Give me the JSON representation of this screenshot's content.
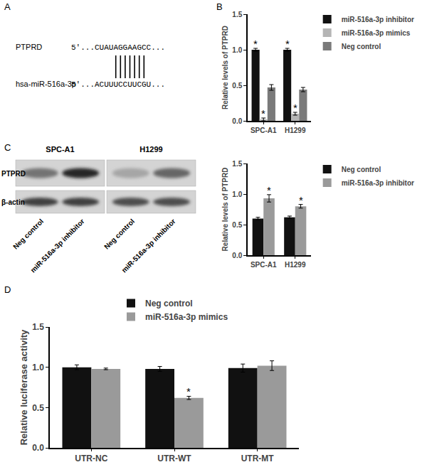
{
  "panels": [
    "A",
    "B",
    "C",
    "D"
  ],
  "alignment": {
    "rows": [
      {
        "label": "PTPRD",
        "sequence": "5'...CUAUAGGAAGCC..."
      },
      {
        "label": "hsa-miR-516a-3p",
        "sequence": "5'...ACUUUCCUUCGU..."
      }
    ]
  },
  "blot": {
    "cell_lines": [
      "SPC-A1",
      "H1299"
    ],
    "proteins": [
      "PTPRD",
      "β-actin"
    ],
    "lanes": [
      "Neg control",
      "miR-516a-3p inhibitor"
    ]
  },
  "chart_data": [
    {
      "type": "bar",
      "y_label": "Relative levels of PTPRD",
      "categories": [
        "SPC-A1",
        "H1299"
      ],
      "series": [
        {
          "name": "miR-516a-3p inhibitor",
          "color": "#111111",
          "values": [
            1.0,
            1.0
          ],
          "errors": [
            0.02,
            0.02
          ],
          "annotations": [
            "*",
            "*"
          ]
        },
        {
          "name": "miR-516a-3p mimics",
          "color": "#b5b5b5",
          "values": [
            0.02,
            0.1
          ],
          "errors": [
            0.02,
            0.02
          ],
          "annotations": [
            "*",
            "*"
          ]
        },
        {
          "name": "Neg control",
          "color": "#7a7a7a",
          "values": [
            0.47,
            0.44
          ],
          "errors": [
            0.04,
            0.03
          ]
        }
      ],
      "ylim": [
        0,
        1.5
      ],
      "yticks": [
        {
          "value": 0,
          "label": "0.0"
        },
        0.5,
        {
          "value": 1,
          "label": "1.0"
        },
        1.5
      ],
      "grid": false,
      "legend": "right"
    },
    {
      "type": "bar",
      "y_label": "Relative levels of PTPRD",
      "categories": [
        "SPC-A1",
        "H1299"
      ],
      "series": [
        {
          "name": "Neg control",
          "color": "#111111",
          "values": [
            0.6,
            0.62
          ],
          "errors": [
            0.02,
            0.02
          ]
        },
        {
          "name": "miR-516a-3p inhibitor",
          "color": "#9a9a9a",
          "values": [
            0.93,
            0.8
          ],
          "errors": [
            0.06,
            0.03
          ],
          "annotations": [
            "*",
            "*"
          ]
        }
      ],
      "ylim": [
        0,
        1.5
      ],
      "yticks": [
        {
          "value": 0,
          "label": "0.0"
        },
        0.5,
        {
          "value": 1,
          "label": "1.0"
        },
        1.5
      ],
      "grid": false,
      "legend": "right"
    },
    {
      "type": "bar",
      "y_label": "Relative luciferase activity",
      "categories": [
        "UTR-NC",
        "UTR-WT",
        "UTR-MT"
      ],
      "series": [
        {
          "name": "Neg control",
          "color": "#111111",
          "values": [
            1.0,
            0.98,
            0.99
          ],
          "errors": [
            0.03,
            0.03,
            0.05
          ]
        },
        {
          "name": "miR-516a-3p mimics",
          "color": "#9a9a9a",
          "values": [
            0.98,
            0.62,
            1.02
          ],
          "errors": [
            0.01,
            0.02,
            0.06
          ],
          "annotations": [
            null,
            "*",
            null
          ]
        }
      ],
      "ylim": [
        0,
        1.5
      ],
      "yticks": [
        {
          "value": 0,
          "label": "0.0"
        },
        0.5,
        {
          "value": 1,
          "label": "1.0"
        },
        1.5
      ],
      "grid": false,
      "legend": "top"
    }
  ]
}
